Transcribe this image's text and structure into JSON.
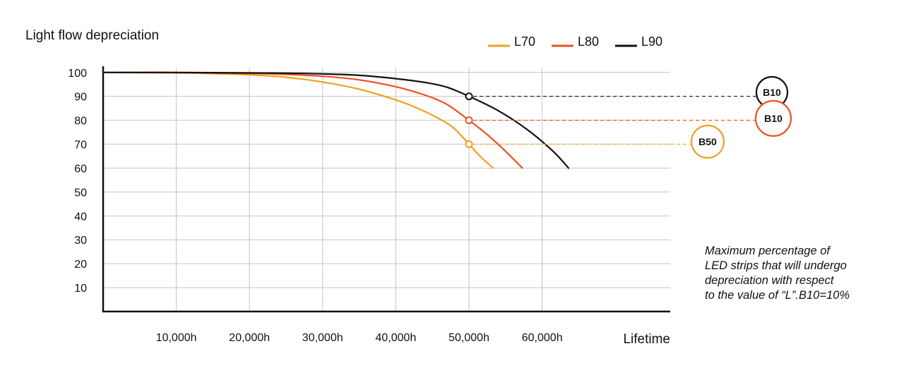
{
  "chart_data": {
    "type": "line",
    "title": "Light flow depreciation",
    "xlabel": "Lifetime",
    "ylabel": "Light flow depreciation",
    "xlim": [
      0,
      77500
    ],
    "ylim": [
      0,
      102
    ],
    "yticks": [
      10,
      20,
      30,
      40,
      50,
      60,
      70,
      80,
      90,
      100
    ],
    "xticks": [
      10000,
      20000,
      30000,
      40000,
      50000,
      60000
    ],
    "xtick_labels": [
      "10,000h",
      "20,000h",
      "30,000h",
      "40,000h",
      "50,000h",
      "60,000h"
    ],
    "grid": true,
    "legend_position": "top-right",
    "series": [
      {
        "name": "L70",
        "color": "#f0a020",
        "x": [
          0,
          5000,
          10000,
          15000,
          20000,
          25000,
          30000,
          35000,
          40000,
          43000,
          46000,
          48000,
          50000,
          51500,
          53300
        ],
        "y": [
          100,
          99.9,
          99.8,
          99.5,
          99,
          98,
          96,
          93,
          88.5,
          85,
          80.5,
          76.5,
          70,
          65,
          60
        ]
      },
      {
        "name": "L80",
        "color": "#ee5020",
        "x": [
          0,
          5000,
          10000,
          15000,
          20000,
          25000,
          30000,
          35000,
          40000,
          44000,
          47000,
          50000,
          52500,
          55000,
          57300
        ],
        "y": [
          100,
          100,
          99.9,
          99.8,
          99.6,
          99.2,
          98.4,
          96.9,
          94,
          90.5,
          86.6,
          80,
          74,
          67,
          60
        ]
      },
      {
        "name": "L90",
        "color": "#111111",
        "x": [
          0,
          5000,
          10000,
          15000,
          20000,
          25000,
          30000,
          35000,
          40000,
          44000,
          47000,
          50000,
          54000,
          58000,
          61500,
          63600
        ],
        "y": [
          100,
          100,
          100,
          99.9,
          99.8,
          99.7,
          99.4,
          98.8,
          97.4,
          95.8,
          93.8,
          90,
          84,
          76,
          67,
          60
        ]
      }
    ],
    "markers": [
      {
        "series": "L90",
        "x": 50000,
        "y": 90,
        "label": "B10",
        "color": "#111111"
      },
      {
        "series": "L80",
        "x": 50000,
        "y": 80,
        "label": "B10",
        "color": "#ee5020"
      },
      {
        "series": "L70",
        "x": 50000,
        "y": 70,
        "label": "B50",
        "color": "#f0a020"
      }
    ],
    "annotation": [
      "Maximum percentage of",
      "LED strips that will undergo",
      "depreciation with respect",
      "to the value of “L”.B10=10%"
    ]
  }
}
